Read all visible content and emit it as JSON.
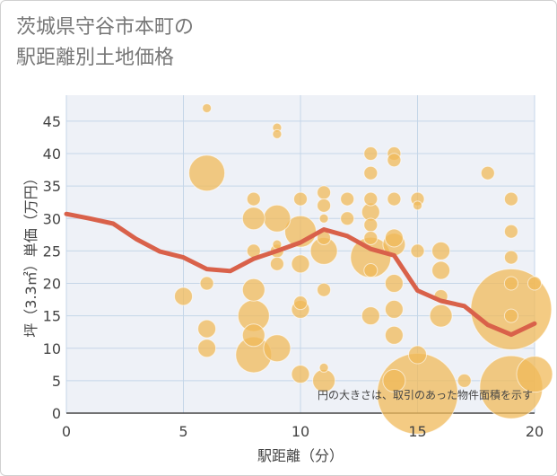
{
  "title_line1": "茨城県守谷市本町の",
  "title_line2": "駅距離別土地価格",
  "chart_data": {
    "type": "scatter",
    "xlabel": "駅距離（分）",
    "ylabel": "坪（3.3㎡）単価（万円）",
    "xlim": [
      0,
      20
    ],
    "ylim": [
      0,
      49
    ],
    "xticks": [
      0,
      5,
      10,
      15,
      20
    ],
    "yticks": [
      0,
      5,
      10,
      15,
      20,
      25,
      30,
      35,
      40,
      45
    ],
    "grid": true,
    "annotation": "円の大きさは、取引のあった物件面積を示す",
    "bubble_color": "#f0b95a",
    "line_color": "#d9614a",
    "bubbles": [
      {
        "x": 6,
        "y": 47,
        "size": 1
      },
      {
        "x": 6,
        "y": 37,
        "size": 4
      },
      {
        "x": 6,
        "y": 20,
        "size": 1.5
      },
      {
        "x": 6,
        "y": 13,
        "size": 2
      },
      {
        "x": 6,
        "y": 10,
        "size": 2
      },
      {
        "x": 5,
        "y": 18,
        "size": 2
      },
      {
        "x": 8,
        "y": 33,
        "size": 1.5
      },
      {
        "x": 8,
        "y": 30,
        "size": 2.5
      },
      {
        "x": 8,
        "y": 25,
        "size": 1.5
      },
      {
        "x": 8,
        "y": 19,
        "size": 2.5
      },
      {
        "x": 8,
        "y": 15,
        "size": 3.5
      },
      {
        "x": 8,
        "y": 12,
        "size": 2.5
      },
      {
        "x": 8,
        "y": 9,
        "size": 4
      },
      {
        "x": 9,
        "y": 44,
        "size": 1
      },
      {
        "x": 9,
        "y": 43,
        "size": 1
      },
      {
        "x": 9,
        "y": 30,
        "size": 3
      },
      {
        "x": 9,
        "y": 26,
        "size": 1
      },
      {
        "x": 9,
        "y": 25,
        "size": 1.5
      },
      {
        "x": 9,
        "y": 23,
        "size": 1.5
      },
      {
        "x": 9,
        "y": 10,
        "size": 3
      },
      {
        "x": 10,
        "y": 33,
        "size": 1.5
      },
      {
        "x": 10,
        "y": 28,
        "size": 3.5
      },
      {
        "x": 10,
        "y": 23,
        "size": 2
      },
      {
        "x": 10,
        "y": 17,
        "size": 1.5
      },
      {
        "x": 10,
        "y": 16,
        "size": 2
      },
      {
        "x": 10,
        "y": 6,
        "size": 2
      },
      {
        "x": 11,
        "y": 34,
        "size": 1.5
      },
      {
        "x": 11,
        "y": 32,
        "size": 1.5
      },
      {
        "x": 11,
        "y": 30,
        "size": 1
      },
      {
        "x": 11,
        "y": 27,
        "size": 1.5
      },
      {
        "x": 11,
        "y": 25,
        "size": 3
      },
      {
        "x": 11,
        "y": 19,
        "size": 1.5
      },
      {
        "x": 11,
        "y": 7,
        "size": 1
      },
      {
        "x": 11,
        "y": 5,
        "size": 2.5
      },
      {
        "x": 12,
        "y": 33,
        "size": 1.5
      },
      {
        "x": 12,
        "y": 30,
        "size": 1.5
      },
      {
        "x": 13,
        "y": 40,
        "size": 1.5
      },
      {
        "x": 13,
        "y": 37,
        "size": 1.5
      },
      {
        "x": 13,
        "y": 33,
        "size": 1.5
      },
      {
        "x": 13,
        "y": 31,
        "size": 2
      },
      {
        "x": 13,
        "y": 29,
        "size": 1.5
      },
      {
        "x": 13,
        "y": 27,
        "size": 1.5
      },
      {
        "x": 13,
        "y": 24,
        "size": 4.5
      },
      {
        "x": 13,
        "y": 22,
        "size": 1.5
      },
      {
        "x": 13,
        "y": 15,
        "size": 2
      },
      {
        "x": 14,
        "y": 40,
        "size": 1.5
      },
      {
        "x": 14,
        "y": 39,
        "size": 1.5
      },
      {
        "x": 14,
        "y": 33,
        "size": 1.5
      },
      {
        "x": 14,
        "y": 27,
        "size": 2
      },
      {
        "x": 14,
        "y": 26,
        "size": 2.5
      },
      {
        "x": 14,
        "y": 20,
        "size": 2
      },
      {
        "x": 14,
        "y": 16,
        "size": 2
      },
      {
        "x": 14,
        "y": 12,
        "size": 2
      },
      {
        "x": 14,
        "y": 5,
        "size": 2.5
      },
      {
        "x": 15,
        "y": 33,
        "size": 1.5
      },
      {
        "x": 15,
        "y": 32,
        "size": 1
      },
      {
        "x": 15,
        "y": 25,
        "size": 1.5
      },
      {
        "x": 15,
        "y": 9,
        "size": 2
      },
      {
        "x": 15,
        "y": 3,
        "size": 9
      },
      {
        "x": 16,
        "y": 25,
        "size": 2
      },
      {
        "x": 16,
        "y": 22,
        "size": 2
      },
      {
        "x": 16,
        "y": 18,
        "size": 1.5
      },
      {
        "x": 16,
        "y": 15,
        "size": 2.5
      },
      {
        "x": 17,
        "y": 5,
        "size": 1.5
      },
      {
        "x": 18,
        "y": 37,
        "size": 1.5
      },
      {
        "x": 19,
        "y": 33,
        "size": 1.5
      },
      {
        "x": 19,
        "y": 28,
        "size": 1.5
      },
      {
        "x": 19,
        "y": 24,
        "size": 1.5
      },
      {
        "x": 19,
        "y": 20,
        "size": 1.5
      },
      {
        "x": 19,
        "y": 16,
        "size": 9
      },
      {
        "x": 19,
        "y": 15,
        "size": 1.5
      },
      {
        "x": 19,
        "y": 4,
        "size": 7
      },
      {
        "x": 20,
        "y": 20,
        "size": 1.5
      },
      {
        "x": 20,
        "y": 6,
        "size": 4
      }
    ],
    "trend_line": {
      "x": [
        0,
        1,
        2,
        3,
        4,
        5,
        6,
        7,
        8,
        9,
        10,
        11,
        12,
        13,
        14,
        15,
        16,
        17,
        18,
        19,
        20
      ],
      "y": [
        30.7,
        30,
        29.2,
        26.8,
        24.9,
        24.0,
        22.2,
        21.9,
        23.8,
        25.0,
        26.3,
        28.3,
        27.3,
        25.3,
        24.3,
        18.9,
        17.3,
        16.5,
        13.6,
        12.1,
        13.8
      ]
    }
  }
}
